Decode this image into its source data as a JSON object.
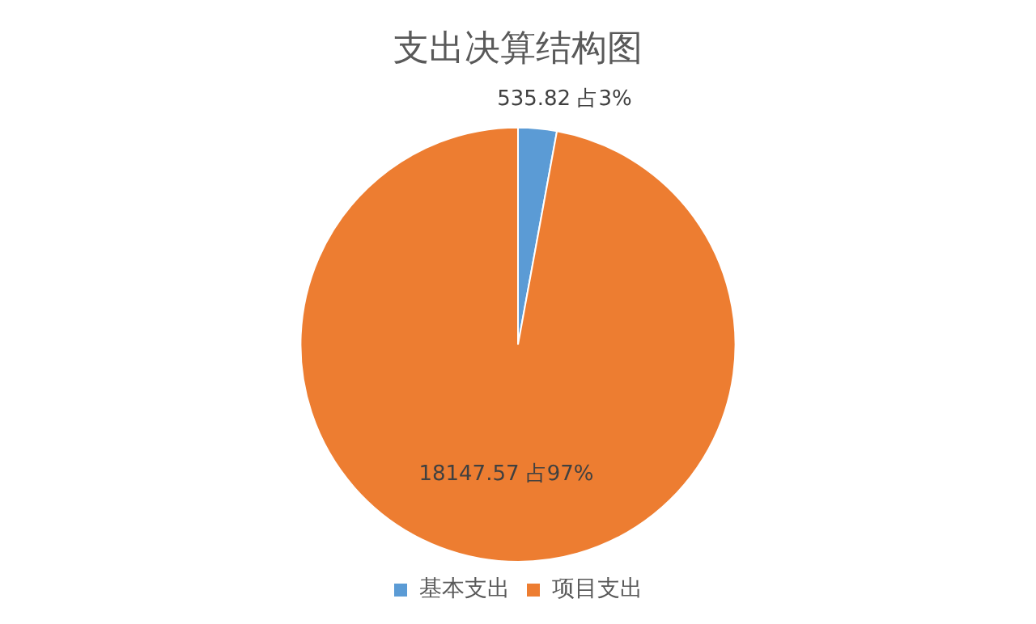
{
  "chart_data": {
    "type": "pie",
    "title": "支出决算结构图",
    "categories": [
      "基本支出",
      "项目支出"
    ],
    "values": [
      535.82,
      18147.57
    ],
    "colors": [
      "#5b9bd5",
      "#ed7d31"
    ],
    "value_labels": [
      "535.82 占3%",
      "18147.57 占97%"
    ],
    "legend": "bottom"
  }
}
